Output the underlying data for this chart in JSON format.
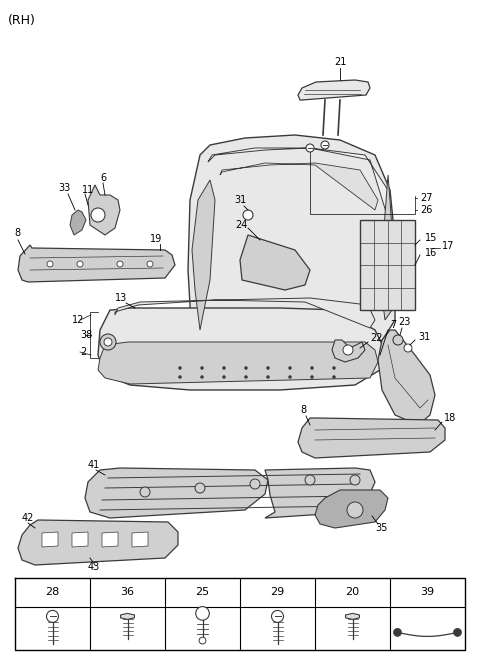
{
  "bg_color": "#ffffff",
  "title_text": "(RH)",
  "table_labels": [
    "28",
    "36",
    "25",
    "29",
    "20",
    "39"
  ],
  "line_color": "#3a3a3a",
  "fill_light": "#e8e8e8",
  "fill_mid": "#d0d0d0",
  "fill_dark": "#b0b0b0",
  "label_fs": 7,
  "fig_w": 4.8,
  "fig_h": 6.56,
  "dpi": 100
}
